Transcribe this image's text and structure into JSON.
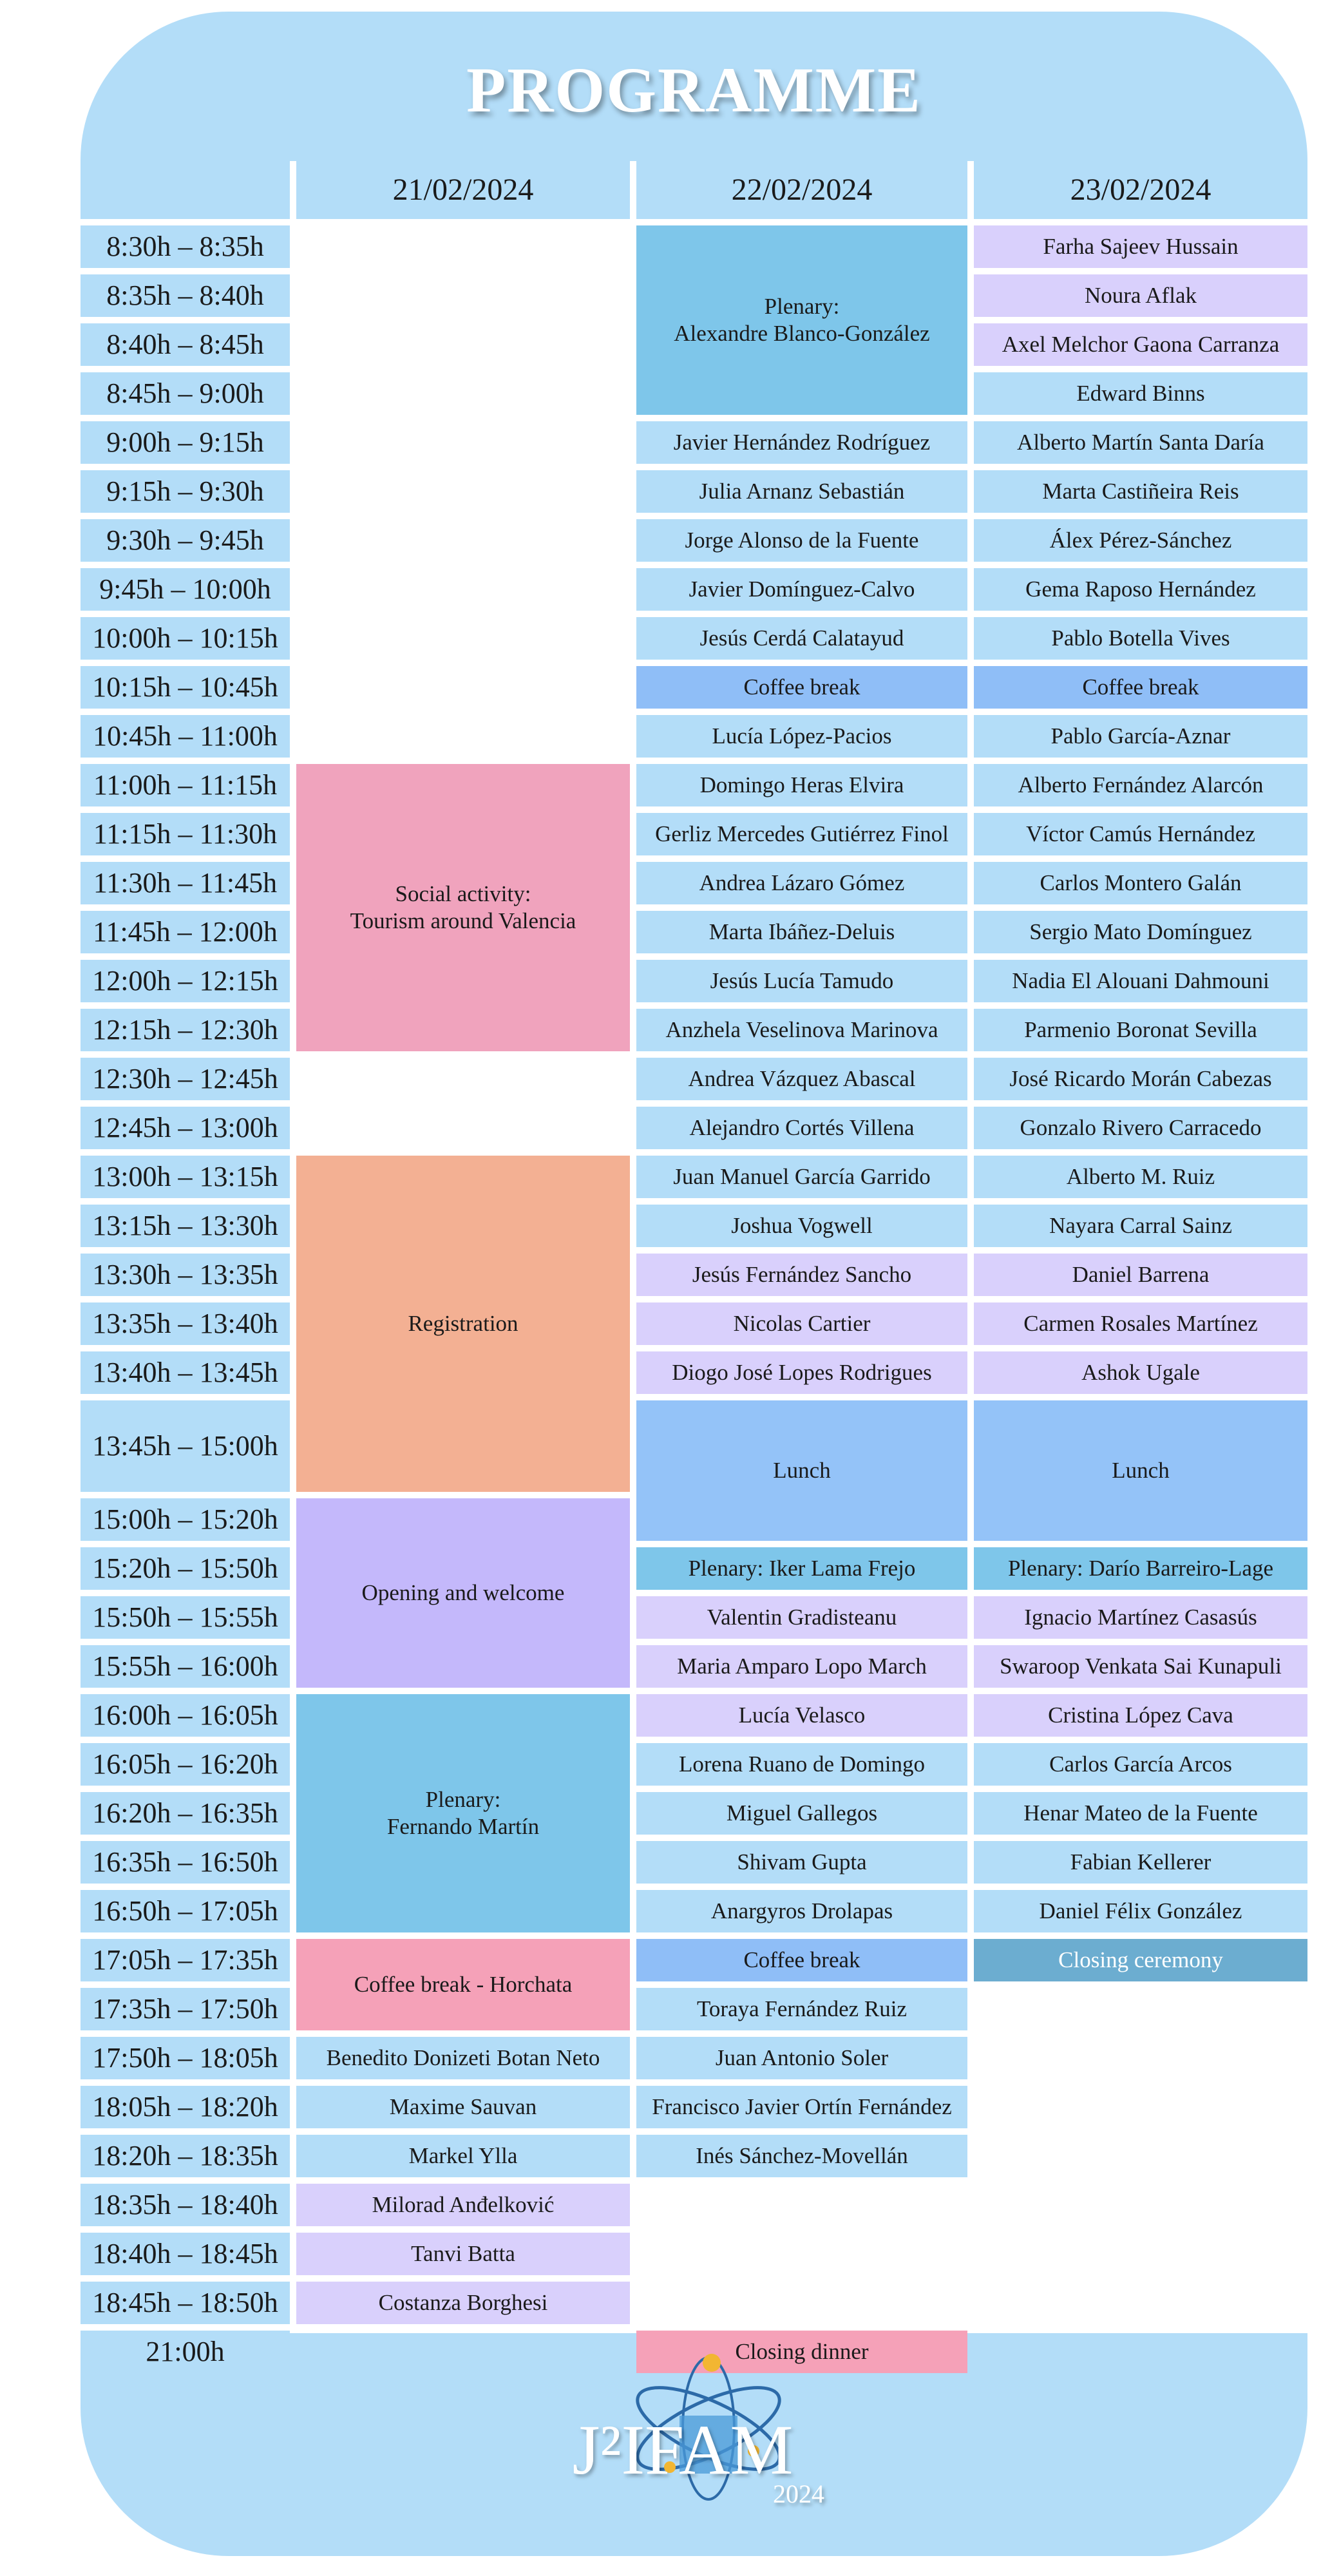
{
  "title": "PROGRAMME",
  "days": [
    "21/02/2024",
    "22/02/2024",
    "23/02/2024"
  ],
  "times": [
    "8:30h – 8:35h",
    "8:35h – 8:40h",
    "8:40h – 8:45h",
    "8:45h – 9:00h",
    "9:00h – 9:15h",
    "9:15h – 9:30h",
    "9:30h – 9:45h",
    "9:45h – 10:00h",
    "10:00h – 10:15h",
    "10:15h – 10:45h",
    "10:45h – 11:00h",
    "11:00h – 11:15h",
    "11:15h – 11:30h",
    "11:30h – 11:45h",
    "11:45h – 12:00h",
    "12:00h – 12:15h",
    "12:15h – 12:30h",
    "12:30h – 12:45h",
    "12:45h – 13:00h",
    "13:00h – 13:15h",
    "13:15h – 13:30h",
    "13:30h – 13:35h",
    "13:35h – 13:40h",
    "13:40h – 13:45h",
    "13:45h – 15:00h",
    "15:00h – 15:20h",
    "15:20h – 15:50h",
    "15:50h – 15:55h",
    "15:55h – 16:00h",
    "16:00h – 16:05h",
    "16:05h – 16:20h",
    "16:20h – 16:35h",
    "16:35h – 16:50h",
    "16:50h – 17:05h",
    "17:05h – 17:35h",
    "17:35h – 17:50h",
    "17:50h – 18:05h",
    "18:05h – 18:20h",
    "18:20h – 18:35h",
    "18:35h – 18:40h",
    "18:40h – 18:45h",
    "18:45h – 18:50h",
    "21:00h"
  ],
  "sessions": [
    {
      "day": 0,
      "start": 11,
      "span": 6,
      "label": "Social activity:\nTourism around Valencia",
      "color": "pink"
    },
    {
      "day": 0,
      "start": 19,
      "span": 6,
      "label": "Registration",
      "color": "peach"
    },
    {
      "day": 0,
      "start": 25,
      "span": 4,
      "label": "Opening and welcome",
      "color": "purp"
    },
    {
      "day": 0,
      "start": 29,
      "span": 5,
      "label": "Plenary:\nFernando Martín",
      "color": "plen"
    },
    {
      "day": 0,
      "start": 34,
      "span": 2,
      "label": "Coffee break - Horchata",
      "color": "hor"
    },
    {
      "day": 0,
      "start": 36,
      "span": 1,
      "label": "Benedito Donizeti Botan Neto",
      "color": "blue"
    },
    {
      "day": 0,
      "start": 37,
      "span": 1,
      "label": "Maxime Sauvan",
      "color": "blue"
    },
    {
      "day": 0,
      "start": 38,
      "span": 1,
      "label": "Markel Ylla",
      "color": "blue"
    },
    {
      "day": 0,
      "start": 39,
      "span": 1,
      "label": "Milorad Anđelković",
      "color": "lav"
    },
    {
      "day": 0,
      "start": 40,
      "span": 1,
      "label": "Tanvi Batta",
      "color": "lav"
    },
    {
      "day": 0,
      "start": 41,
      "span": 1,
      "label": "Costanza Borghesi",
      "color": "lav"
    },
    {
      "day": 1,
      "start": 0,
      "span": 4,
      "label": "Plenary:\nAlexandre Blanco-González",
      "color": "plen"
    },
    {
      "day": 1,
      "start": 4,
      "span": 1,
      "label": "Javier Hernández Rodríguez",
      "color": "blue"
    },
    {
      "day": 1,
      "start": 5,
      "span": 1,
      "label": "Julia Arnanz Sebastián",
      "color": "blue"
    },
    {
      "day": 1,
      "start": 6,
      "span": 1,
      "label": "Jorge Alonso de la Fuente",
      "color": "blue"
    },
    {
      "day": 1,
      "start": 7,
      "span": 1,
      "label": "Javier Domínguez-Calvo",
      "color": "blue"
    },
    {
      "day": 1,
      "start": 8,
      "span": 1,
      "label": "Jesús Cerdá Calatayud",
      "color": "blue"
    },
    {
      "day": 1,
      "start": 9,
      "span": 1,
      "label": "Coffee break",
      "color": "cof"
    },
    {
      "day": 1,
      "start": 10,
      "span": 1,
      "label": "Lucía López-Pacios",
      "color": "blue"
    },
    {
      "day": 1,
      "start": 11,
      "span": 1,
      "label": "Domingo Heras Elvira",
      "color": "blue"
    },
    {
      "day": 1,
      "start": 12,
      "span": 1,
      "label": "Gerliz Mercedes Gutiérrez Finol",
      "color": "blue"
    },
    {
      "day": 1,
      "start": 13,
      "span": 1,
      "label": "Andrea Lázaro Gómez",
      "color": "blue"
    },
    {
      "day": 1,
      "start": 14,
      "span": 1,
      "label": "Marta Ibáñez-Deluis",
      "color": "blue"
    },
    {
      "day": 1,
      "start": 15,
      "span": 1,
      "label": "Jesús Lucía Tamudo",
      "color": "blue"
    },
    {
      "day": 1,
      "start": 16,
      "span": 1,
      "label": "Anzhela Veselinova Marinova",
      "color": "blue"
    },
    {
      "day": 1,
      "start": 17,
      "span": 1,
      "label": "Andrea Vázquez Abascal",
      "color": "blue"
    },
    {
      "day": 1,
      "start": 18,
      "span": 1,
      "label": "Alejandro Cortés Villena",
      "color": "blue"
    },
    {
      "day": 1,
      "start": 19,
      "span": 1,
      "label": "Juan Manuel García Garrido",
      "color": "blue"
    },
    {
      "day": 1,
      "start": 20,
      "span": 1,
      "label": "Joshua Vogwell",
      "color": "blue"
    },
    {
      "day": 1,
      "start": 21,
      "span": 1,
      "label": "Jesús Fernández Sancho",
      "color": "lav"
    },
    {
      "day": 1,
      "start": 22,
      "span": 1,
      "label": "Nicolas Cartier",
      "color": "lav"
    },
    {
      "day": 1,
      "start": 23,
      "span": 1,
      "label": "Diogo José Lopes Rodrigues",
      "color": "lav"
    },
    {
      "day": 1,
      "start": 24,
      "span": 2,
      "label": "Lunch",
      "color": "lunch"
    },
    {
      "day": 1,
      "start": 26,
      "span": 1,
      "label": "Plenary: Iker Lama Frejo",
      "color": "plen"
    },
    {
      "day": 1,
      "start": 27,
      "span": 1,
      "label": "Valentin Gradisteanu",
      "color": "lav"
    },
    {
      "day": 1,
      "start": 28,
      "span": 1,
      "label": "Maria Amparo Lopo March",
      "color": "lav"
    },
    {
      "day": 1,
      "start": 29,
      "span": 1,
      "label": "Lucía Velasco",
      "color": "lav"
    },
    {
      "day": 1,
      "start": 30,
      "span": 1,
      "label": "Lorena Ruano de Domingo",
      "color": "blue"
    },
    {
      "day": 1,
      "start": 31,
      "span": 1,
      "label": "Miguel Gallegos",
      "color": "blue"
    },
    {
      "day": 1,
      "start": 32,
      "span": 1,
      "label": "Shivam Gupta",
      "color": "blue"
    },
    {
      "day": 1,
      "start": 33,
      "span": 1,
      "label": "Anargyros Drolapas",
      "color": "blue"
    },
    {
      "day": 1,
      "start": 34,
      "span": 1,
      "label": "Coffee break",
      "color": "cof"
    },
    {
      "day": 1,
      "start": 35,
      "span": 1,
      "label": "Toraya Fernández Ruiz",
      "color": "blue"
    },
    {
      "day": 1,
      "start": 36,
      "span": 1,
      "label": "Juan Antonio Soler",
      "color": "blue"
    },
    {
      "day": 1,
      "start": 37,
      "span": 1,
      "label": "Francisco Javier Ortín Fernández",
      "color": "blue"
    },
    {
      "day": 1,
      "start": 38,
      "span": 1,
      "label": "Inés Sánchez-Movellán",
      "color": "blue"
    },
    {
      "day": 1,
      "start": 42,
      "span": 1,
      "label": "Closing dinner",
      "color": "dinner"
    },
    {
      "day": 2,
      "start": 0,
      "span": 1,
      "label": "Farha Sajeev Hussain",
      "color": "lav"
    },
    {
      "day": 2,
      "start": 1,
      "span": 1,
      "label": "Noura Aflak",
      "color": "lav"
    },
    {
      "day": 2,
      "start": 2,
      "span": 1,
      "label": "Axel Melchor Gaona Carranza",
      "color": "lav"
    },
    {
      "day": 2,
      "start": 3,
      "span": 1,
      "label": "Edward Binns",
      "color": "blue"
    },
    {
      "day": 2,
      "start": 4,
      "span": 1,
      "label": "Alberto Martín Santa Daría",
      "color": "blue"
    },
    {
      "day": 2,
      "start": 5,
      "span": 1,
      "label": "Marta Castiñeira Reis",
      "color": "blue"
    },
    {
      "day": 2,
      "start": 6,
      "span": 1,
      "label": "Álex Pérez-Sánchez",
      "color": "blue"
    },
    {
      "day": 2,
      "start": 7,
      "span": 1,
      "label": "Gema Raposo Hernández",
      "color": "blue"
    },
    {
      "day": 2,
      "start": 8,
      "span": 1,
      "label": "Pablo Botella Vives",
      "color": "blue"
    },
    {
      "day": 2,
      "start": 9,
      "span": 1,
      "label": "Coffee break",
      "color": "cof"
    },
    {
      "day": 2,
      "start": 10,
      "span": 1,
      "label": "Pablo García-Aznar",
      "color": "blue"
    },
    {
      "day": 2,
      "start": 11,
      "span": 1,
      "label": "Alberto Fernández Alarcón",
      "color": "blue"
    },
    {
      "day": 2,
      "start": 12,
      "span": 1,
      "label": "Víctor Camús Hernández",
      "color": "blue"
    },
    {
      "day": 2,
      "start": 13,
      "span": 1,
      "label": "Carlos Montero Galán",
      "color": "blue"
    },
    {
      "day": 2,
      "start": 14,
      "span": 1,
      "label": "Sergio Mato Domínguez",
      "color": "blue"
    },
    {
      "day": 2,
      "start": 15,
      "span": 1,
      "label": "Nadia El Alouani Dahmouni",
      "color": "blue"
    },
    {
      "day": 2,
      "start": 16,
      "span": 1,
      "label": "Parmenio Boronat Sevilla",
      "color": "blue"
    },
    {
      "day": 2,
      "start": 17,
      "span": 1,
      "label": "José Ricardo Morán Cabezas",
      "color": "blue"
    },
    {
      "day": 2,
      "start": 18,
      "span": 1,
      "label": "Gonzalo Rivero Carracedo",
      "color": "blue"
    },
    {
      "day": 2,
      "start": 19,
      "span": 1,
      "label": "Alberto M. Ruiz",
      "color": "blue"
    },
    {
      "day": 2,
      "start": 20,
      "span": 1,
      "label": "Nayara Carral Sainz",
      "color": "blue"
    },
    {
      "day": 2,
      "start": 21,
      "span": 1,
      "label": "Daniel Barrena",
      "color": "lav"
    },
    {
      "day": 2,
      "start": 22,
      "span": 1,
      "label": "Carmen Rosales Martínez",
      "color": "lav"
    },
    {
      "day": 2,
      "start": 23,
      "span": 1,
      "label": "Ashok Ugale",
      "color": "lav"
    },
    {
      "day": 2,
      "start": 24,
      "span": 2,
      "label": "Lunch",
      "color": "lunch"
    },
    {
      "day": 2,
      "start": 26,
      "span": 1,
      "label": "Plenary: Darío Barreiro-Lage",
      "color": "plen"
    },
    {
      "day": 2,
      "start": 27,
      "span": 1,
      "label": "Ignacio Martínez Casasús",
      "color": "lav"
    },
    {
      "day": 2,
      "start": 28,
      "span": 1,
      "label": "Swaroop Venkata Sai Kunapuli",
      "color": "lav"
    },
    {
      "day": 2,
      "start": 29,
      "span": 1,
      "label": "Cristina López Cava",
      "color": "lav"
    },
    {
      "day": 2,
      "start": 30,
      "span": 1,
      "label": "Carlos García Arcos",
      "color": "blue"
    },
    {
      "day": 2,
      "start": 31,
      "span": 1,
      "label": "Henar Mateo de la Fuente",
      "color": "blue"
    },
    {
      "day": 2,
      "start": 32,
      "span": 1,
      "label": "Fabian Kellerer",
      "color": "blue"
    },
    {
      "day": 2,
      "start": 33,
      "span": 1,
      "label": "Daniel Félix González",
      "color": "blue"
    },
    {
      "day": 2,
      "start": 34,
      "span": 1,
      "label": "Closing ceremony",
      "color": "close"
    }
  ],
  "logo": {
    "name": "J2IFAM 2024 logo",
    "text": "J²IFAM",
    "year": "2024"
  },
  "colors": {
    "page_bg": "#b3ddf8",
    "plenary": "#7ec6ea",
    "coffee": "#8fbef7",
    "lavender": "#d9d0fc",
    "social": "#f0a3bd",
    "registration": "#f3b093",
    "opening": "#c4b8fb",
    "closing_ceremony": "#6cadd0",
    "closing_dinner": "#f5a1b8"
  }
}
